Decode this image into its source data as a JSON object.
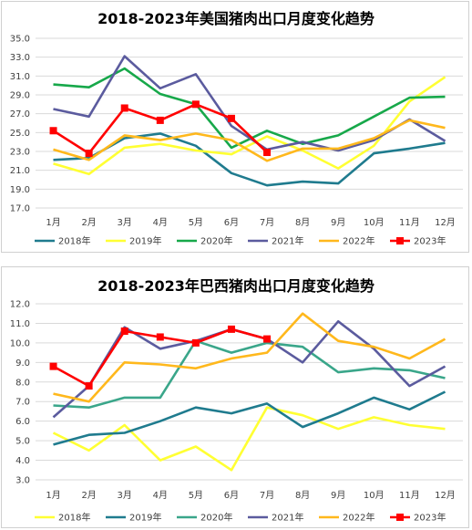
{
  "colors": {
    "2018": "#1F7B8E",
    "2019": "#FFFF33",
    "2020": "#17A84A",
    "2021": "#5B5B9E",
    "2022": "#FFB81C",
    "2023": "#FF0000",
    "brazil_2018": "#FFFF33",
    "brazil_2019": "#1F7B8E",
    "brazil_2020": "#3AA68A",
    "grid": "#D9D9D9",
    "axis_text": "#404040"
  },
  "chart_data": [
    {
      "type": "line",
      "title": "2018-2023年美国猪肉出口月度变化趋势",
      "categories": [
        "1月",
        "2月",
        "3月",
        "4月",
        "5月",
        "6月",
        "7月",
        "8月",
        "9月",
        "10月",
        "11月",
        "12月"
      ],
      "ylim": [
        17.0,
        35.0
      ],
      "yticks": [
        "35.0",
        "33.0",
        "31.0",
        "29.0",
        "27.0",
        "25.0",
        "23.0",
        "21.0",
        "19.0",
        "17.0"
      ],
      "grid": true,
      "legend_position": "bottom",
      "series": [
        {
          "name": "2018年",
          "color_key": "2018",
          "values": [
            22.1,
            22.3,
            24.4,
            24.9,
            23.6,
            20.7,
            19.4,
            19.8,
            19.6,
            22.8,
            23.3,
            23.9
          ]
        },
        {
          "name": "2019年",
          "color_key": "2019",
          "values": [
            21.7,
            20.6,
            23.4,
            23.8,
            23.1,
            22.7,
            24.6,
            23.1,
            21.2,
            23.6,
            28.3,
            30.9
          ]
        },
        {
          "name": "2020年",
          "color_key": "2020",
          "values": [
            30.1,
            29.8,
            31.8,
            29.1,
            28.0,
            23.4,
            25.2,
            23.8,
            24.7,
            26.7,
            28.7,
            28.8
          ]
        },
        {
          "name": "2021年",
          "color_key": "2021",
          "values": [
            27.5,
            26.7,
            33.1,
            29.7,
            31.2,
            25.7,
            23.2,
            24.0,
            23.1,
            24.2,
            26.4,
            24.1
          ]
        },
        {
          "name": "2022年",
          "color_key": "2022",
          "values": [
            23.2,
            22.1,
            24.7,
            24.2,
            24.9,
            24.2,
            22.0,
            23.3,
            23.3,
            24.4,
            26.3,
            25.5
          ]
        },
        {
          "name": "2023年",
          "color_key": "2023",
          "markers": true,
          "values": [
            25.2,
            22.8,
            27.6,
            26.3,
            28.0,
            26.5,
            22.9,
            null,
            null,
            null,
            null,
            null
          ]
        }
      ]
    },
    {
      "type": "line",
      "title": "2018-2023年巴西猪肉出口月度变化趋势",
      "categories": [
        "1月",
        "2月",
        "3月",
        "4月",
        "5月",
        "6月",
        "7月",
        "8月",
        "9月",
        "10月",
        "11月",
        "12月"
      ],
      "ylim": [
        3.0,
        12.0
      ],
      "yticks": [
        "12.0",
        "11.0",
        "10.0",
        "9.0",
        "8.0",
        "7.0",
        "6.0",
        "5.0",
        "4.0",
        "3.0"
      ],
      "grid": true,
      "legend_position": "bottom",
      "series": [
        {
          "name": "2018年",
          "color_key": "brazil_2018",
          "values": [
            5.4,
            4.5,
            5.8,
            4.0,
            4.7,
            3.5,
            6.7,
            6.3,
            5.6,
            6.2,
            5.8,
            5.6
          ]
        },
        {
          "name": "2019年",
          "color_key": "brazil_2019",
          "values": [
            4.8,
            5.3,
            5.4,
            6.0,
            6.7,
            6.4,
            6.9,
            5.7,
            6.4,
            7.2,
            6.6,
            7.5
          ]
        },
        {
          "name": "2020年",
          "color_key": "brazil_2020",
          "values": [
            6.8,
            6.7,
            7.2,
            7.2,
            10.1,
            9.5,
            10.0,
            9.8,
            8.5,
            8.7,
            8.6,
            8.2
          ]
        },
        {
          "name": "2021年",
          "color_key": "2021",
          "values": [
            6.2,
            7.8,
            10.8,
            9.7,
            10.1,
            10.7,
            10.2,
            9.0,
            11.1,
            9.7,
            7.8,
            8.8
          ]
        },
        {
          "name": "2022年",
          "color_key": "2022",
          "values": [
            7.4,
            7.0,
            9.0,
            8.9,
            8.7,
            9.2,
            9.5,
            11.5,
            10.1,
            9.8,
            9.2,
            10.2
          ]
        },
        {
          "name": "2023年",
          "color_key": "2023",
          "markers": true,
          "values": [
            8.8,
            7.8,
            10.6,
            10.3,
            10.0,
            10.7,
            10.2,
            null,
            null,
            null,
            null,
            null
          ]
        }
      ]
    }
  ]
}
